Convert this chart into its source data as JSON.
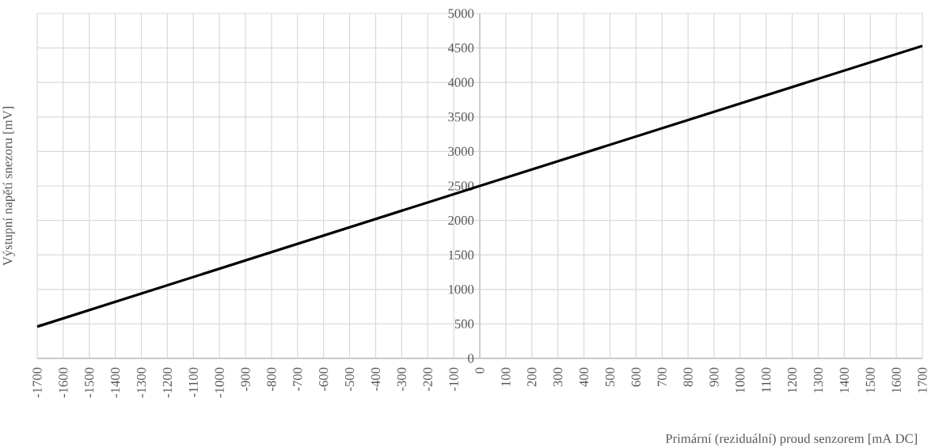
{
  "chart_data": {
    "type": "line",
    "xlabel": "Primární (reziduální) proud senzorem [mA DC]",
    "ylabel": "Výstupní napětí snezoru [mV]",
    "x": [
      -1700,
      0,
      1700
    ],
    "series": [
      {
        "color": "#000000",
        "values": [
          460,
          2500,
          4530
        ]
      }
    ],
    "xlim": [
      -1700,
      1700
    ],
    "ylim": [
      0,
      5000
    ],
    "xticks": [
      -1700,
      -1600,
      -1500,
      -1400,
      -1300,
      -1200,
      -1100,
      -1000,
      -900,
      -800,
      -700,
      -600,
      -500,
      -400,
      -300,
      -200,
      -100,
      0,
      100,
      200,
      300,
      400,
      500,
      600,
      700,
      800,
      900,
      1000,
      1100,
      1200,
      1300,
      1400,
      1500,
      1600,
      1700
    ],
    "yticks": [
      0,
      500,
      1000,
      1500,
      2000,
      2500,
      3000,
      3500,
      4000,
      4500,
      5000
    ],
    "grid": true,
    "marker": "none",
    "line_style": "solid"
  }
}
